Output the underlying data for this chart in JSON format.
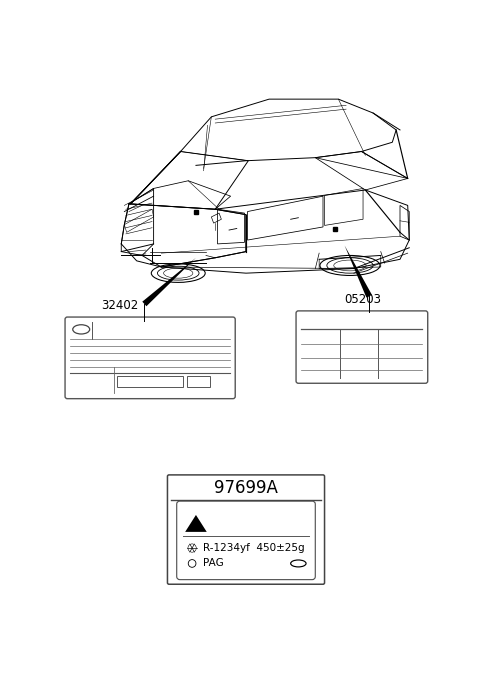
{
  "bg_color": "#ffffff",
  "fig_width": 4.8,
  "fig_height": 6.85,
  "dpi": 100,
  "part_32402": "32402",
  "part_05203": "05203",
  "part_97699A": "97699A",
  "label_refrigerant": "R-1234yf  450±25g",
  "label_oil": "PAG",
  "line_color": "#000000",
  "lw_main": 0.7,
  "lw_thin": 0.4,
  "lw_thick": 1.0
}
